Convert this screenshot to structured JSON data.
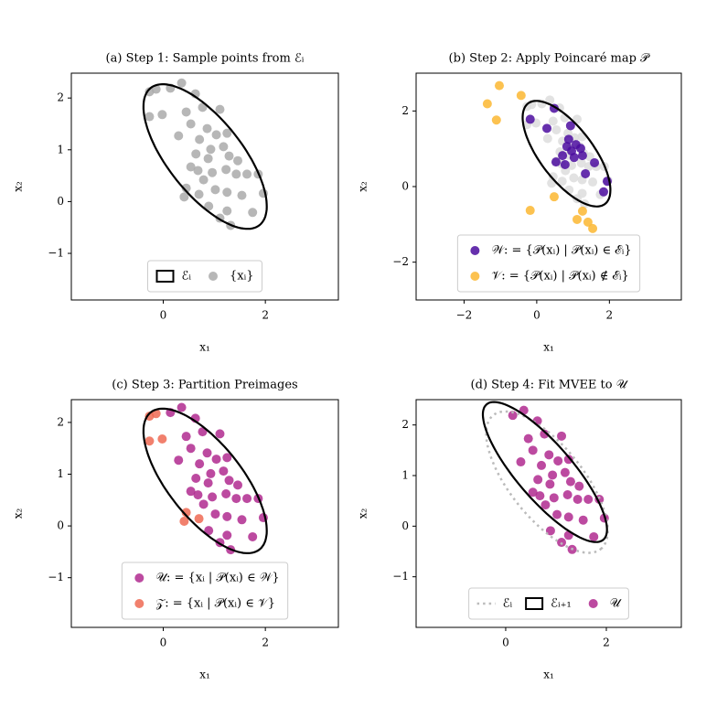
{
  "chart_data": [
    {
      "type": "scatter",
      "title": "(a) Step 1: Sample points from ℰᵢ",
      "xlabel": "x₁",
      "ylabel": "x₂",
      "xlim": [
        -1.8,
        3.43
      ],
      "ylim": [
        -1.9,
        2.48
      ],
      "xticks": [
        0,
        2
      ],
      "yticks": [
        {
          "value": -1,
          "label": "−1"
        },
        0,
        1,
        2
      ],
      "legend": {
        "loc": "lower center",
        "ncol": 2
      },
      "ellipses": [
        {
          "name": "ℰᵢ",
          "center": [
            0.82,
            0.87
          ],
          "semi_axes": [
            1.7,
            0.72
          ],
          "angle": -51,
          "color": "#000000",
          "style": "solid"
        }
      ],
      "series": [
        {
          "name": "{xᵢ}",
          "color": "#aaaaaa",
          "x": [
            -0.27,
            -0.14,
            0.14,
            0.36,
            0.63,
            -0.27,
            -0.02,
            0.45,
            0.77,
            1.11,
            0.54,
            0.86,
            0.3,
            0.71,
            1.04,
            1.25,
            1.18,
            0.93,
            0.64,
            0.88,
            1.29,
            0.68,
            0.96,
            1.23,
            1.43,
            1.64,
            1.86,
            0.45,
            0.7,
            1.02,
            1.25,
            1.54,
            1.96,
            0.41,
            0.89,
            1.25,
            1.11,
            1.32,
            1.75,
            0.79,
            0.54,
            1.46
          ],
          "y": [
            2.12,
            2.17,
            2.19,
            2.29,
            2.08,
            1.64,
            1.68,
            1.73,
            1.82,
            1.78,
            1.5,
            1.41,
            1.27,
            1.2,
            1.29,
            1.32,
            1.06,
            1.01,
            0.92,
            0.83,
            0.88,
            0.6,
            0.56,
            0.62,
            0.53,
            0.53,
            0.53,
            0.26,
            0.14,
            0.23,
            0.18,
            0.12,
            0.16,
            0.09,
            -0.09,
            -0.18,
            -0.32,
            -0.46,
            -0.21,
            0.42,
            0.67,
            0.79
          ]
        }
      ]
    },
    {
      "type": "scatter",
      "title": "(b) Step 2: Apply Poincaré map 𝒫",
      "xlabel": "x₁",
      "ylabel": "x₂",
      "xlim": [
        -3.32,
        3.98
      ],
      "ylim": [
        -3,
        3
      ],
      "xticks": [
        {
          "value": -2,
          "label": "−2"
        },
        0,
        2
      ],
      "yticks": [
        {
          "value": -2,
          "label": "−2"
        },
        0,
        2
      ],
      "legend": {
        "loc": "lower center",
        "ncol": 1
      },
      "ellipses": [
        {
          "center": [
            0.82,
            0.87
          ],
          "semi_axes": [
            1.7,
            0.72
          ],
          "angle": -51,
          "color": "#000000",
          "style": "solid"
        }
      ],
      "series": [
        {
          "color": "#dddddd",
          "x": [
            -0.27,
            -0.14,
            0.14,
            0.36,
            0.63,
            -0.27,
            -0.02,
            0.45,
            0.77,
            1.11,
            0.54,
            0.86,
            0.3,
            0.71,
            1.04,
            1.25,
            1.18,
            0.93,
            0.64,
            0.88,
            1.29,
            0.68,
            0.96,
            1.23,
            1.43,
            1.64,
            1.86,
            0.45,
            0.7,
            1.02,
            1.25,
            1.54,
            1.96,
            0.41,
            0.89,
            1.25,
            1.11,
            1.32,
            1.75,
            0.79,
            0.54,
            1.46
          ],
          "y": [
            2.12,
            2.17,
            2.19,
            2.29,
            2.08,
            1.64,
            1.68,
            1.73,
            1.82,
            1.78,
            1.5,
            1.41,
            1.27,
            1.2,
            1.29,
            1.32,
            1.06,
            1.01,
            0.92,
            0.83,
            0.88,
            0.6,
            0.56,
            0.62,
            0.53,
            0.53,
            0.53,
            0.26,
            0.14,
            0.23,
            0.18,
            0.12,
            0.16,
            0.09,
            -0.09,
            -0.18,
            -0.32,
            -0.46,
            -0.21,
            0.42,
            0.67,
            0.79
          ]
        },
        {
          "name": "𝒲: = {𝒫(xᵢ) | 𝒫(xᵢ) ∈ ℰᵢ}",
          "color": "#4b0c9f",
          "x": [
            -0.18,
            0.28,
            0.48,
            0.93,
            0.53,
            1.26,
            1.59,
            1.94,
            1.84,
            0.83,
            0.96,
            1.08,
            0.71,
            1.03,
            0.88,
            1.21,
            0.78,
            1.34
          ],
          "y": [
            1.78,
            1.54,
            2.07,
            1.61,
            0.65,
            0.82,
            0.63,
            0.14,
            -0.14,
            1.06,
            0.94,
            1.11,
            0.82,
            0.77,
            1.25,
            1.01,
            0.58,
            0.34
          ]
        },
        {
          "name": "𝒱: = {𝒫(xᵢ) | 𝒫(xᵢ) ∉ ℰᵢ}",
          "color": "#fbb731",
          "x": [
            -1.03,
            -0.43,
            -1.36,
            -1.11,
            -0.18,
            0.48,
            1.11,
            1.26,
            1.41,
            1.54
          ],
          "y": [
            2.67,
            2.41,
            2.19,
            1.76,
            -0.63,
            -0.27,
            -0.87,
            -0.65,
            -0.94,
            -1.11
          ]
        }
      ]
    },
    {
      "type": "scatter",
      "title": "(c) Step 3: Partition Preimages",
      "xlabel": "x₁",
      "ylabel": "x₂",
      "xlim": [
        -1.8,
        3.43
      ],
      "ylim": [
        -1.96,
        2.44
      ],
      "xticks": [
        0,
        2
      ],
      "yticks": [
        {
          "value": -1,
          "label": "−1"
        },
        0,
        1,
        2
      ],
      "legend": {
        "loc": "lower center",
        "ncol": 1
      },
      "ellipses": [
        {
          "center": [
            0.82,
            0.87
          ],
          "semi_axes": [
            1.7,
            0.72
          ],
          "angle": -51,
          "color": "#000000",
          "style": "solid"
        }
      ],
      "series": [
        {
          "name": "𝒰: = {xᵢ | 𝒫(xᵢ) ∈ 𝒲}",
          "color": "#b02a8f",
          "x": [
            0.14,
            0.36,
            0.63,
            0.45,
            0.77,
            1.11,
            0.54,
            0.86,
            0.3,
            0.71,
            1.04,
            1.25,
            1.18,
            0.93,
            0.64,
            0.88,
            1.29,
            0.68,
            0.96,
            1.23,
            1.43,
            1.64,
            1.86,
            1.02,
            1.25,
            1.54,
            1.96,
            0.89,
            1.25,
            1.11,
            1.32,
            1.75,
            0.79,
            0.54,
            1.46
          ],
          "y": [
            2.19,
            2.29,
            2.08,
            1.73,
            1.82,
            1.78,
            1.5,
            1.41,
            1.27,
            1.2,
            1.29,
            1.32,
            1.06,
            1.01,
            0.92,
            0.83,
            0.88,
            0.6,
            0.56,
            0.62,
            0.53,
            0.53,
            0.53,
            0.23,
            0.18,
            0.12,
            0.16,
            -0.09,
            -0.18,
            -0.32,
            -0.46,
            -0.21,
            0.42,
            0.67,
            0.79
          ]
        },
        {
          "name": "𝒵: = {xᵢ | 𝒫(xᵢ) ∈ 𝒱}",
          "color": "#ee6a54",
          "x": [
            -0.27,
            -0.14,
            -0.27,
            -0.02,
            0.45,
            0.41,
            0.7
          ],
          "y": [
            2.12,
            2.17,
            1.64,
            1.68,
            0.26,
            0.09,
            0.14
          ]
        }
      ]
    },
    {
      "type": "scatter",
      "title": "(d) Step 4: Fit MVEE to 𝒰",
      "xlabel": "x₁",
      "ylabel": "x₂",
      "xlim": [
        -1.78,
        3.49
      ],
      "ylim": [
        -2.0,
        2.5
      ],
      "xticks": [
        0,
        2
      ],
      "yticks": [
        {
          "value": -1,
          "label": "−1"
        },
        0,
        1,
        2
      ],
      "legend": {
        "loc": "lower center",
        "ncol": 3
      },
      "ellipses": [
        {
          "name": "ℰᵢ",
          "center": [
            0.82,
            0.87
          ],
          "semi_axes": [
            1.7,
            0.72
          ],
          "angle": -51,
          "color": "#bbbbbb",
          "style": "dotted"
        },
        {
          "name": "ℰᵢ₊₁",
          "center": [
            0.78,
            1.07
          ],
          "semi_axes": [
            1.77,
            0.55
          ],
          "angle": -49,
          "color": "#000000",
          "style": "solid"
        }
      ],
      "series": [
        {
          "name": "𝒰",
          "color": "#b02a8f",
          "x": [
            0.14,
            0.36,
            0.63,
            0.45,
            0.77,
            1.11,
            0.54,
            0.86,
            0.3,
            0.71,
            1.04,
            1.25,
            1.18,
            0.93,
            0.64,
            0.88,
            1.29,
            0.68,
            0.96,
            1.23,
            1.43,
            1.64,
            1.86,
            1.02,
            1.25,
            1.54,
            1.96,
            0.89,
            1.25,
            1.11,
            1.32,
            1.75,
            0.79,
            0.54,
            1.46
          ],
          "y": [
            2.19,
            2.29,
            2.08,
            1.73,
            1.82,
            1.78,
            1.5,
            1.41,
            1.27,
            1.2,
            1.29,
            1.32,
            1.06,
            1.01,
            0.92,
            0.83,
            0.88,
            0.6,
            0.56,
            0.62,
            0.53,
            0.53,
            0.53,
            0.23,
            0.18,
            0.12,
            0.16,
            -0.09,
            -0.18,
            -0.32,
            -0.46,
            -0.21,
            0.42,
            0.67,
            0.79
          ]
        }
      ]
    }
  ]
}
